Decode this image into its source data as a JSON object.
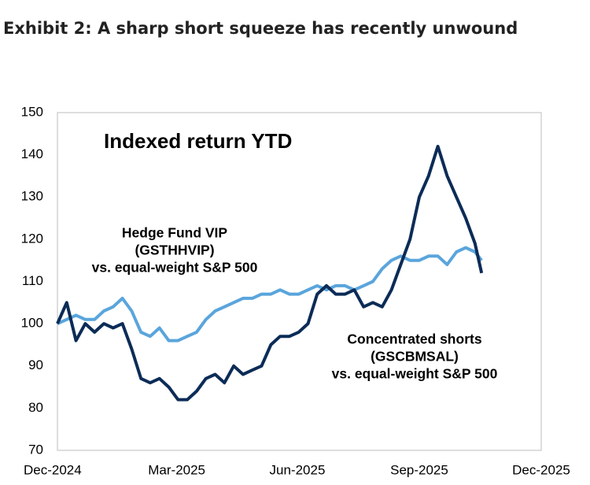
{
  "chart_data": {
    "type": "line",
    "title": "Exhibit 2: A sharp short squeeze has recently unwound",
    "subtitle": "Indexed return YTD",
    "x": [
      0,
      7,
      14,
      21,
      28,
      35,
      42,
      49,
      56,
      63,
      70,
      77,
      84,
      91,
      98,
      105,
      112,
      119,
      126,
      133,
      140,
      147,
      154,
      161,
      168,
      175,
      182,
      189,
      196,
      203,
      210,
      217,
      224,
      231,
      238,
      245,
      252,
      259,
      266,
      273,
      280,
      287,
      294,
      301,
      308,
      315,
      320
    ],
    "series": [
      {
        "label_lines": [
          "Hedge Fund VIP",
          "(GSTHHVIP)",
          "vs. equal-weight S&P 500"
        ],
        "color": "#5aa5dc",
        "values": [
          100,
          101,
          102,
          101,
          101,
          103,
          104,
          106,
          103,
          98,
          97,
          99,
          96,
          96,
          97,
          98,
          101,
          103,
          104,
          105,
          106,
          106,
          107,
          107,
          108,
          107,
          107,
          108,
          109,
          108,
          109,
          109,
          108,
          109,
          110,
          113,
          115,
          116,
          115,
          115,
          116,
          116,
          114,
          117,
          118,
          117,
          115
        ]
      },
      {
        "label_lines": [
          "Concentrated shorts",
          "(GSCBMSAL)",
          "vs. equal-weight S&P 500"
        ],
        "color": "#0c2c57",
        "values": [
          100,
          105,
          96,
          100,
          98,
          100,
          99,
          100,
          94,
          87,
          86,
          87,
          85,
          82,
          82,
          84,
          87,
          88,
          86,
          90,
          88,
          89,
          90,
          95,
          97,
          97,
          98,
          100,
          107,
          109,
          107,
          107,
          108,
          104,
          105,
          104,
          108,
          114,
          120,
          130,
          135,
          142,
          135,
          130,
          125,
          119,
          112
        ]
      }
    ],
    "xlim": [
      0,
      365
    ],
    "xticks": [
      {
        "value": 0,
        "label": "Dec-2024"
      },
      {
        "value": 90,
        "label": "Mar-2025"
      },
      {
        "value": 181,
        "label": "Jun-2025"
      },
      {
        "value": 273,
        "label": "Sep-2025"
      },
      {
        "value": 365,
        "label": "Dec-2025"
      }
    ],
    "ylim": [
      70,
      150
    ],
    "yticks": [
      70,
      80,
      90,
      100,
      110,
      120,
      130,
      140,
      150
    ],
    "grid": false
  }
}
